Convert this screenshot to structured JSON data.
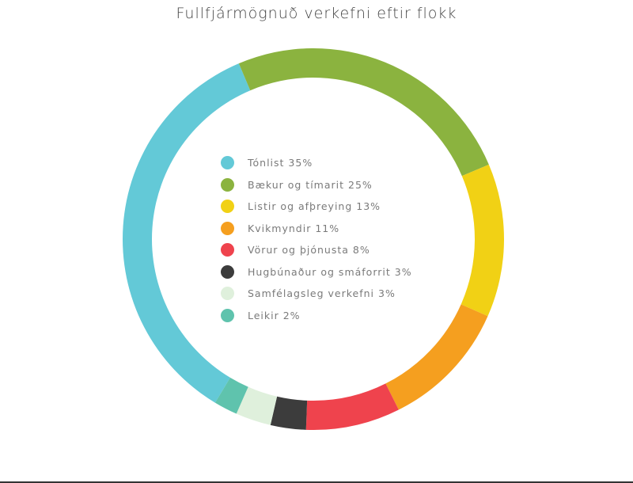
{
  "title": "Fullfjármögnuð verkefni eftir flokk",
  "chart_data": {
    "type": "pie",
    "subtype": "donut",
    "title": "Fullfjármögnuð verkefni eftir flokk",
    "categories": [
      "Tónlist",
      "Bækur og tímarit",
      "Listir og afþreying",
      "Kvikmyndir",
      "Vörur og þjónusta",
      "Hugbúnaður og smáforrit",
      "Samfélagsleg verkefni",
      "Leikir"
    ],
    "values": [
      35,
      25,
      13,
      11,
      8,
      3,
      3,
      2
    ],
    "unit": "%",
    "colors": [
      "#63c9d7",
      "#8bb33f",
      "#f1d115",
      "#f59f1f",
      "#ef434d",
      "#3c3c3c",
      "#dff0dc",
      "#5fc3ad"
    ],
    "legend_position": "inside-center-left"
  },
  "legend": [
    {
      "label": "Tónlist 35%",
      "color": "#63c9d7"
    },
    {
      "label": "Bækur og tímarit 25%",
      "color": "#8bb33f"
    },
    {
      "label": "Listir og afþreying 13%",
      "color": "#f1d115"
    },
    {
      "label": "Kvikmyndir 11%",
      "color": "#f59f1f"
    },
    {
      "label": "Vörur og þjónusta 8%",
      "color": "#ef434d"
    },
    {
      "label": "Hugbúnaður og smáforrit 3%",
      "color": "#3c3c3c"
    },
    {
      "label": "Samfélagsleg verkefni 3%",
      "color": "#dff0dc"
    },
    {
      "label": "Leikir 2%",
      "color": "#5fc3ad"
    }
  ]
}
